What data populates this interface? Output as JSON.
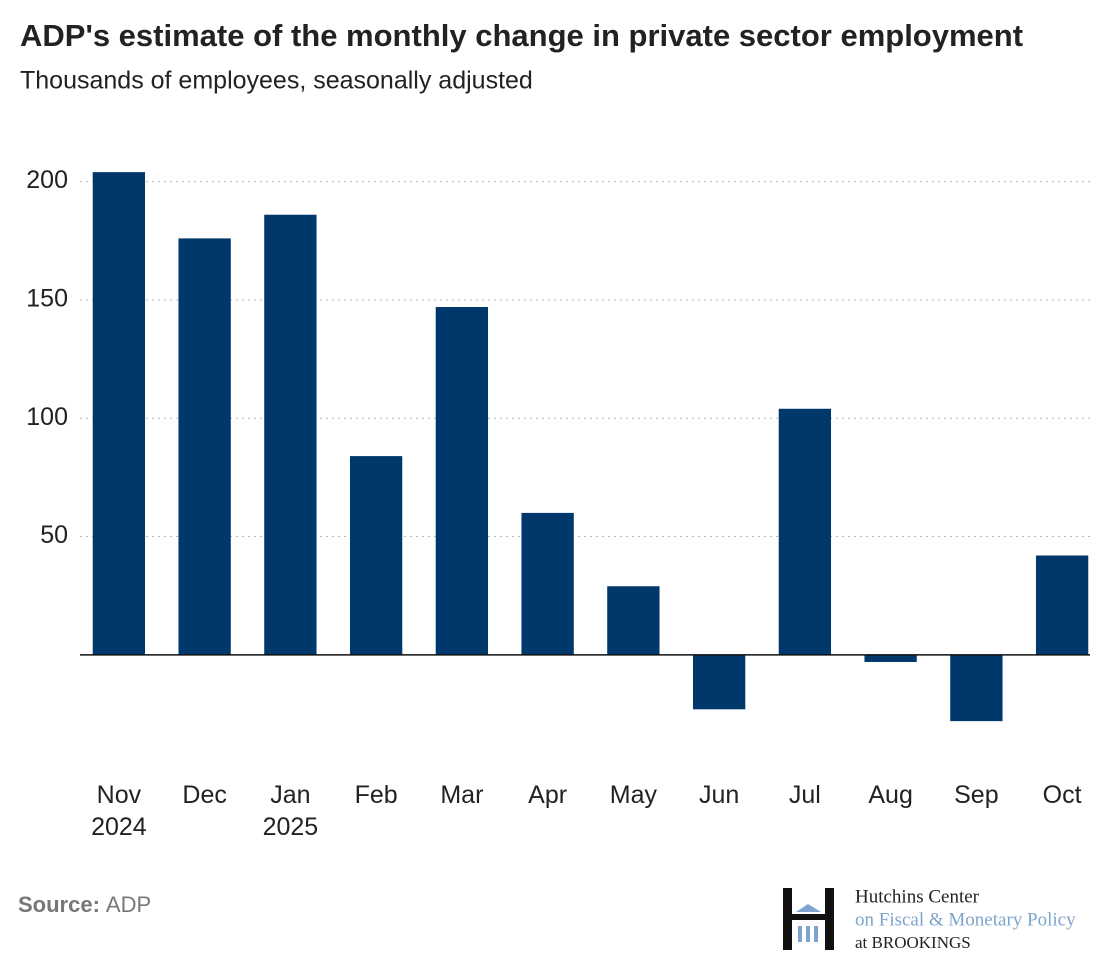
{
  "chart_data": {
    "type": "bar",
    "title": "ADP's estimate of the monthly change in private sector employment",
    "subtitle": "Thousands of employees, seasonally adjusted",
    "categories": [
      "Nov 2024",
      "Dec",
      "Jan 2025",
      "Feb",
      "Mar",
      "Apr",
      "May",
      "Jun",
      "Jul",
      "Aug",
      "Sep",
      "Oct"
    ],
    "values": [
      204,
      176,
      186,
      84,
      147,
      60,
      29,
      -23,
      104,
      -3,
      -28,
      42
    ],
    "color": "#01386b",
    "ylim": [
      -44,
      218
    ],
    "yticks": [
      50,
      100,
      150,
      200
    ],
    "grid": true,
    "source_label": "Source:",
    "source": "ADP",
    "logo": [
      "Hutchins Center",
      "on Fiscal & Monetary Policy",
      "at BROOKINGS"
    ]
  }
}
